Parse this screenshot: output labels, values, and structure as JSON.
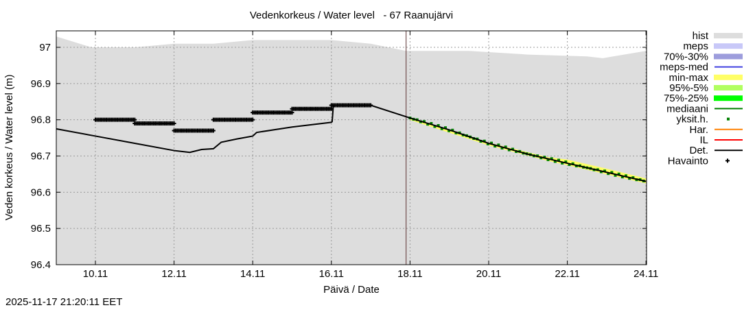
{
  "timestamp": "2025-11-17 21:20:11 EET",
  "chart_data": {
    "type": "line",
    "title": "Vedenkorkeus / Water level   - 67 Raanujärvi",
    "xlabel": "Päivä / Date",
    "ylabel": "Veden korkeus / Water level (m)",
    "xlim_day_of_november": [
      9.0,
      24.0
    ],
    "ylim": [
      96.4,
      97.05
    ],
    "grid": true,
    "legend_placement": "right",
    "x_ticks": [
      "10.11",
      "12.11",
      "14.11",
      "16.11",
      "18.11",
      "20.11",
      "22.11",
      "24.11"
    ],
    "x_tick_days": [
      10,
      12,
      14,
      16,
      18,
      20,
      22,
      24
    ],
    "y_ticks": [
      "96.4",
      "96.5",
      "96.6",
      "96.7",
      "96.8",
      "96.9",
      "97"
    ],
    "y_tick_values": [
      96.4,
      96.5,
      96.6,
      96.7,
      96.8,
      96.9,
      97.0
    ],
    "forecast_start_day": 17.9,
    "legend": [
      {
        "label": "hist",
        "color": "#dddddd",
        "style": "band"
      },
      {
        "label": "meps",
        "color": "#c8c8f8",
        "style": "band"
      },
      {
        "label": "70%-30%",
        "color": "#9d9ddc",
        "style": "band"
      },
      {
        "label": "meps-med",
        "color": "#4040e0",
        "style": "line"
      },
      {
        "label": "min-max",
        "color": "#ffff66",
        "style": "band"
      },
      {
        "label": "95%-5%",
        "color": "#b0ff60",
        "style": "band"
      },
      {
        "label": "75%-25%",
        "color": "#00ff00",
        "style": "band"
      },
      {
        "label": "mediaani",
        "color": "#008000",
        "style": "line"
      },
      {
        "label": "yksit.h.",
        "color": "#008000",
        "style": "dot"
      },
      {
        "label": "Har.",
        "color": "#ff8000",
        "style": "line"
      },
      {
        "label": "IL",
        "color": "#ff0000",
        "style": "line"
      },
      {
        "label": "Det.",
        "color": "#000000",
        "style": "line"
      },
      {
        "label": "Havainto",
        "color": "#000000",
        "style": "cross"
      }
    ],
    "hist_upper": {
      "x": [
        9.0,
        9.9,
        11.0,
        12.0,
        13.0,
        14.0,
        16.0,
        17.0,
        17.9,
        19.5,
        21.0,
        22.5,
        22.9,
        24.0
      ],
      "y": [
        97.03,
        97.0,
        97.0,
        97.01,
        97.01,
        97.02,
        97.02,
        97.01,
        96.99,
        96.99,
        96.98,
        96.975,
        96.97,
        96.99
      ]
    },
    "observations": [
      {
        "from": 10.0,
        "to": 11.0,
        "y": 96.8
      },
      {
        "from": 11.0,
        "to": 12.0,
        "y": 96.79
      },
      {
        "from": 12.0,
        "to": 13.0,
        "y": 96.77
      },
      {
        "from": 13.0,
        "to": 14.0,
        "y": 96.8
      },
      {
        "from": 14.0,
        "to": 15.0,
        "y": 96.82
      },
      {
        "from": 15.0,
        "to": 16.0,
        "y": 96.83
      },
      {
        "from": 16.0,
        "to": 17.0,
        "y": 96.84
      }
    ],
    "det": {
      "x": [
        9.0,
        10.0,
        11.0,
        12.0,
        12.4,
        12.7,
        13.0,
        13.2,
        13.6,
        14.0,
        14.1,
        15.0,
        16.0,
        16.02,
        16.05,
        17.0,
        18.0,
        19.0,
        20.0,
        21.0,
        22.0,
        23.0,
        24.0
      ],
      "y": [
        96.775,
        96.755,
        96.735,
        96.715,
        96.71,
        96.718,
        96.72,
        96.738,
        96.747,
        96.755,
        96.765,
        96.78,
        96.793,
        96.795,
        96.84,
        96.84,
        96.805,
        96.772,
        96.735,
        96.705,
        96.68,
        96.655,
        96.63
      ]
    },
    "minmax_upper": {
      "x": [
        18.0,
        20.0,
        21.5,
        22.0,
        23.0,
        24.0
      ],
      "y": [
        96.806,
        96.737,
        96.697,
        96.69,
        96.665,
        96.638
      ]
    }
  }
}
